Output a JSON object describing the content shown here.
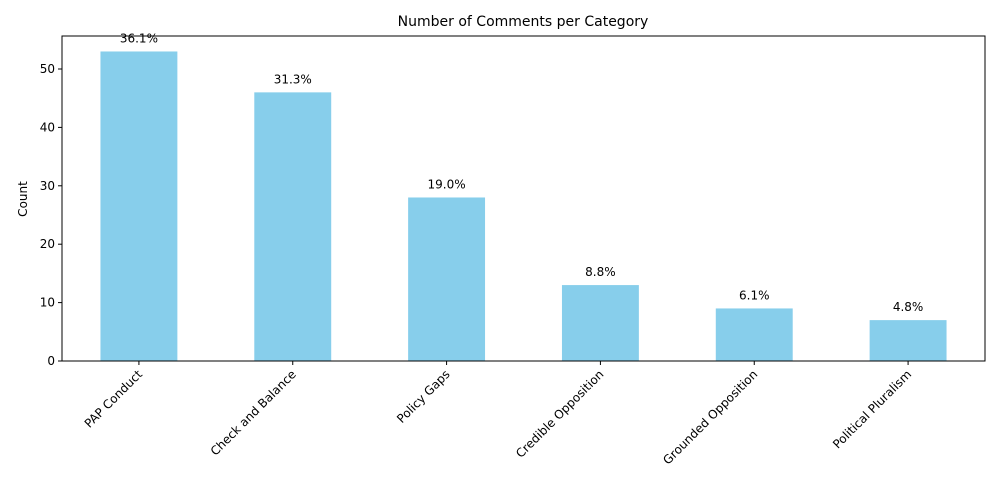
{
  "chart_data": {
    "type": "bar",
    "title": "Number of Comments per Category",
    "xlabel": "",
    "ylabel": "Count",
    "categories": [
      "PAP Conduct",
      "Check and Balance",
      "Policy Gaps",
      "Credible Opposition",
      "Grounded Opposition",
      "Political Pluralism"
    ],
    "values": [
      53,
      46,
      28,
      13,
      9,
      7
    ],
    "data_labels": [
      "36.1%",
      "31.3%",
      "19.0%",
      "8.8%",
      "6.1%",
      "4.8%"
    ],
    "ylim": [
      0,
      55.65
    ],
    "yticks": [
      0,
      10,
      20,
      30,
      40,
      50
    ],
    "bar_color": "#87ceeb",
    "grid": false,
    "x_tick_rotation": 45
  }
}
